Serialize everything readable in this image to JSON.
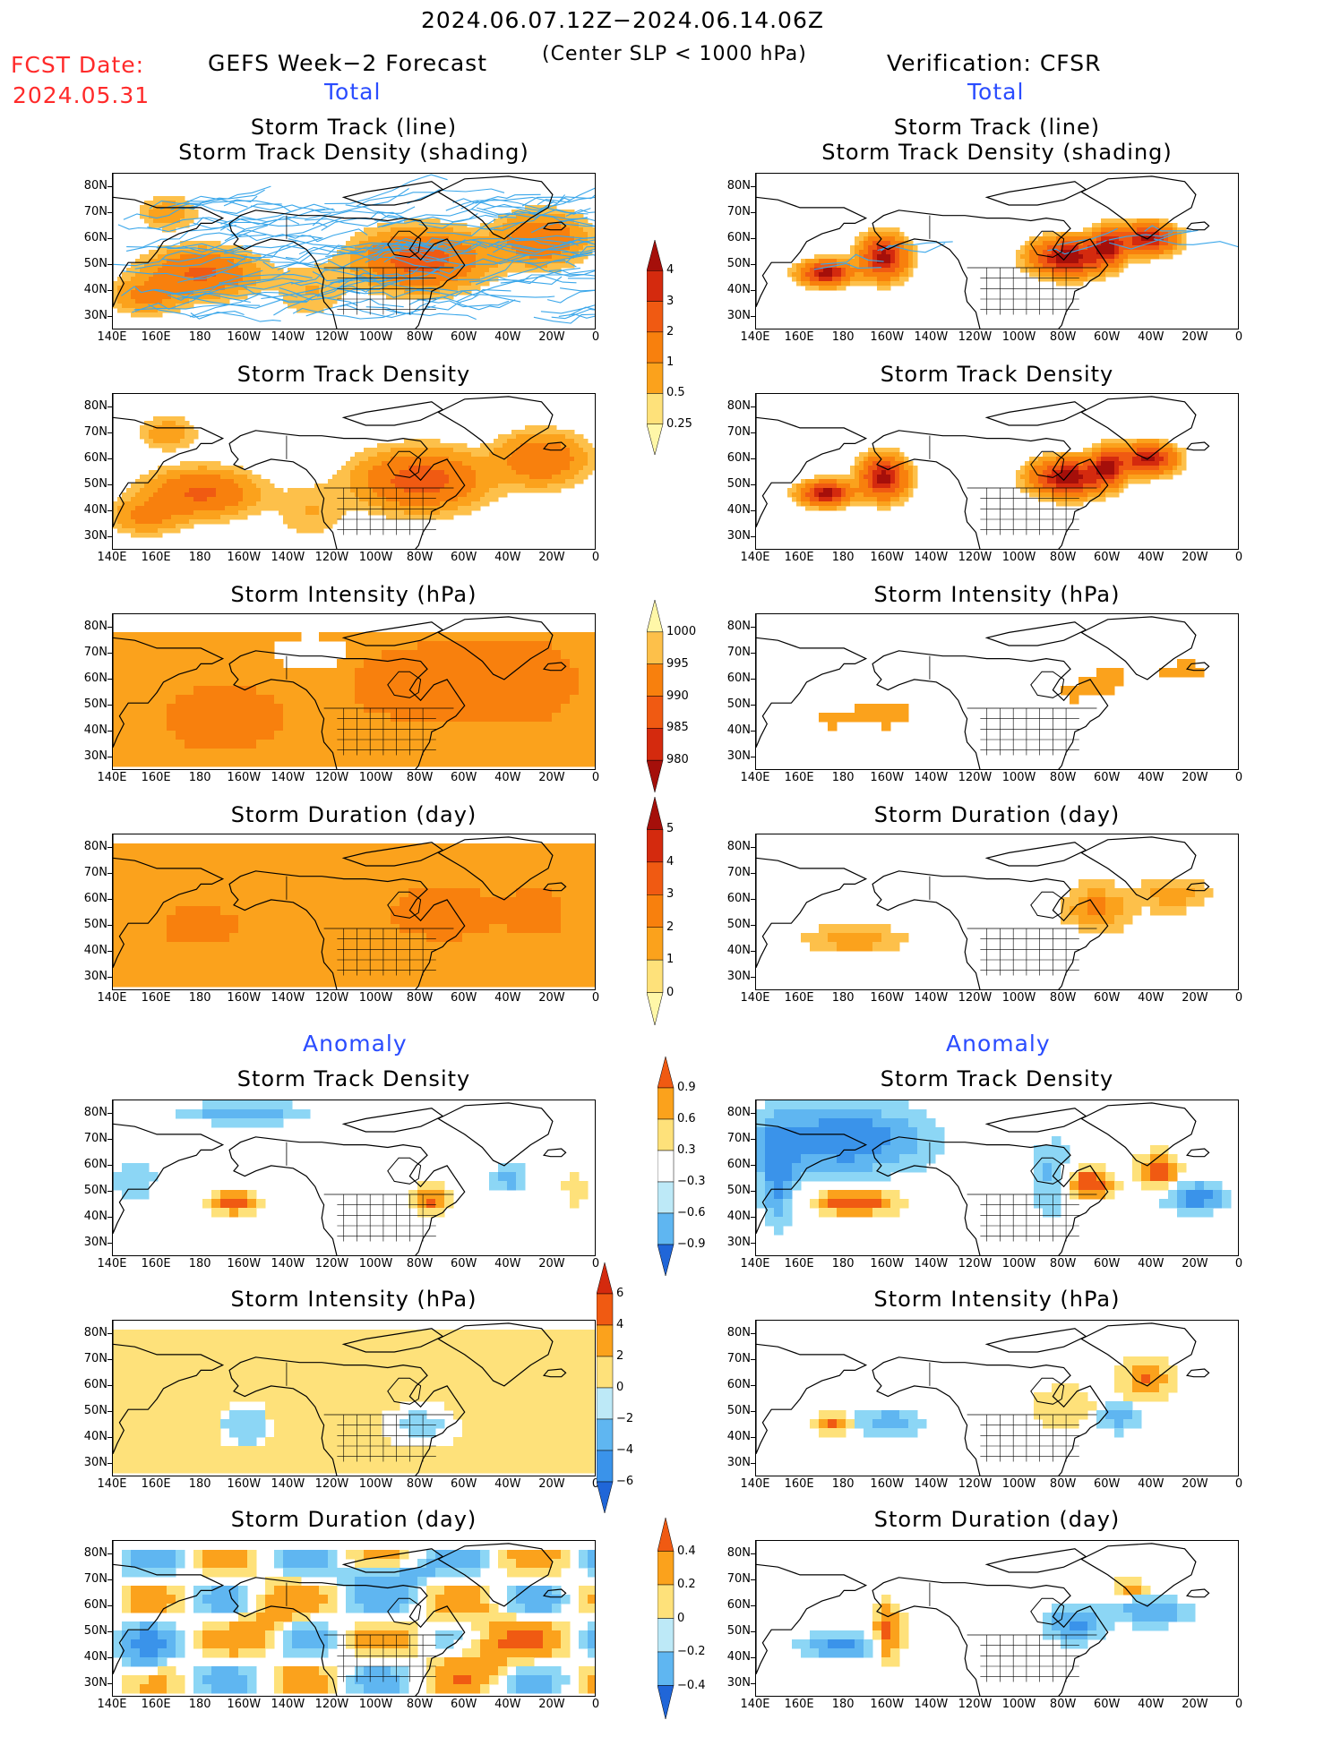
{
  "header": {
    "date_range": "2024.06.07.12Z−2024.06.14.06Z",
    "criterion": "(Center SLP < 1000 hPa)",
    "fcst_label": "FCST Date:",
    "fcst_date": "2024.05.31",
    "left_title": "GEFS Week−2 Forecast",
    "right_title": "Verification: CFSR",
    "total_left": "Total",
    "total_right": "Total",
    "anomaly_left": "Anomaly",
    "anomaly_right": "Anomaly"
  },
  "panel_titles": {
    "row1_line1": "Storm Track (line)",
    "row1_line2": "Storm Track Density (shading)",
    "row2": "Storm Track Density",
    "row3": "Storm Intensity (hPa)",
    "row4": "Storm Duration (day)",
    "row5": "Storm Track Density",
    "row6": "Storm Intensity (hPa)",
    "row7": "Storm Duration (day)"
  },
  "axes": {
    "lat_labels": [
      "80N",
      "70N",
      "60N",
      "50N",
      "40N",
      "30N"
    ],
    "lon_labels": [
      "140E",
      "160E",
      "180",
      "160W",
      "140W",
      "120W",
      "100W",
      "80W",
      "60W",
      "40W",
      "20W",
      "0"
    ]
  },
  "colorbars": {
    "density_total": [
      "4",
      "3",
      "2",
      "1",
      "0.5",
      "0.25"
    ],
    "intensity_total": [
      "1000",
      "995",
      "990",
      "985",
      "980"
    ],
    "duration_total": [
      "5",
      "4",
      "3",
      "2",
      "1",
      "0"
    ],
    "density_anom": [
      "0.9",
      "0.6",
      "0.3",
      "−0.3",
      "−0.6",
      "−0.9"
    ],
    "intensity_anom": [
      "6",
      "4",
      "2",
      "0",
      "−2",
      "−4",
      "−6"
    ],
    "duration_anom": [
      "0.4",
      "0.2",
      "0",
      "−0.2",
      "−0.4"
    ]
  },
  "colors": {
    "warm": [
      "#fff7a8",
      "#fee17a",
      "#fdc04a",
      "#fba21c",
      "#f8800d",
      "#f05a12",
      "#d42a0e",
      "#a50f0a"
    ],
    "cool": [
      "#bde9f7",
      "#8cd6f5",
      "#5fb6f1",
      "#3a93ea",
      "#2066d8"
    ],
    "track": "#3ba7ea"
  }
}
